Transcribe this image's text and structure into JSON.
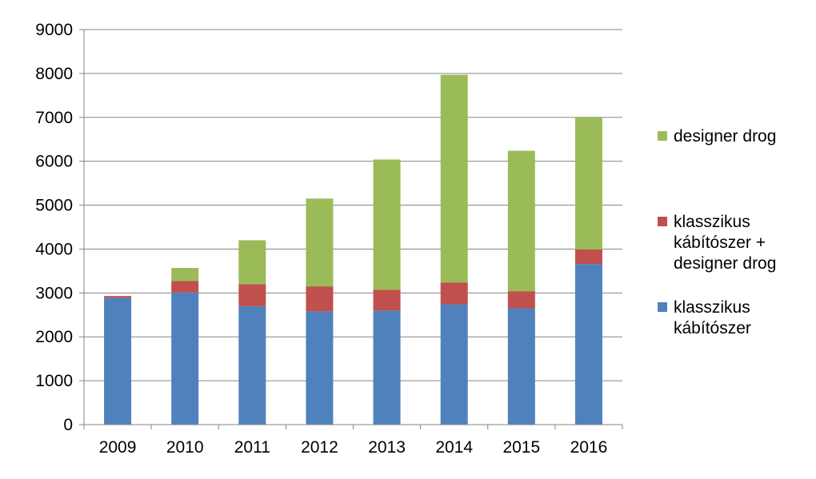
{
  "chart_data": {
    "type": "bar",
    "stacked": true,
    "categories": [
      "2009",
      "2010",
      "2011",
      "2012",
      "2013",
      "2014",
      "2015",
      "2016"
    ],
    "series": [
      {
        "name": "klasszikus kábítószer",
        "color": "#4F81BD",
        "values": [
          2890,
          3010,
          2700,
          2580,
          2600,
          2740,
          2650,
          3660
        ]
      },
      {
        "name": "klasszikus kábítószer + designer drog",
        "color": "#C0504D",
        "values": [
          40,
          260,
          500,
          570,
          470,
          500,
          390,
          330
        ]
      },
      {
        "name": "designer drog",
        "color": "#9BBB59",
        "values": [
          0,
          300,
          1000,
          2000,
          2970,
          4730,
          3200,
          3010
        ]
      }
    ],
    "ylim": [
      0,
      9000
    ],
    "yticks": [
      0,
      1000,
      2000,
      3000,
      4000,
      5000,
      6000,
      7000,
      8000,
      9000
    ],
    "grid": true,
    "legend_position": "right"
  },
  "legend": {
    "items": [
      {
        "label": "designer drog",
        "color": "#9BBB59"
      },
      {
        "label": "klasszikus\nkábítószer +\ndesigner drog",
        "color": "#C0504D"
      },
      {
        "label": "klasszikus\nkábítószer",
        "color": "#4F81BD"
      }
    ]
  }
}
